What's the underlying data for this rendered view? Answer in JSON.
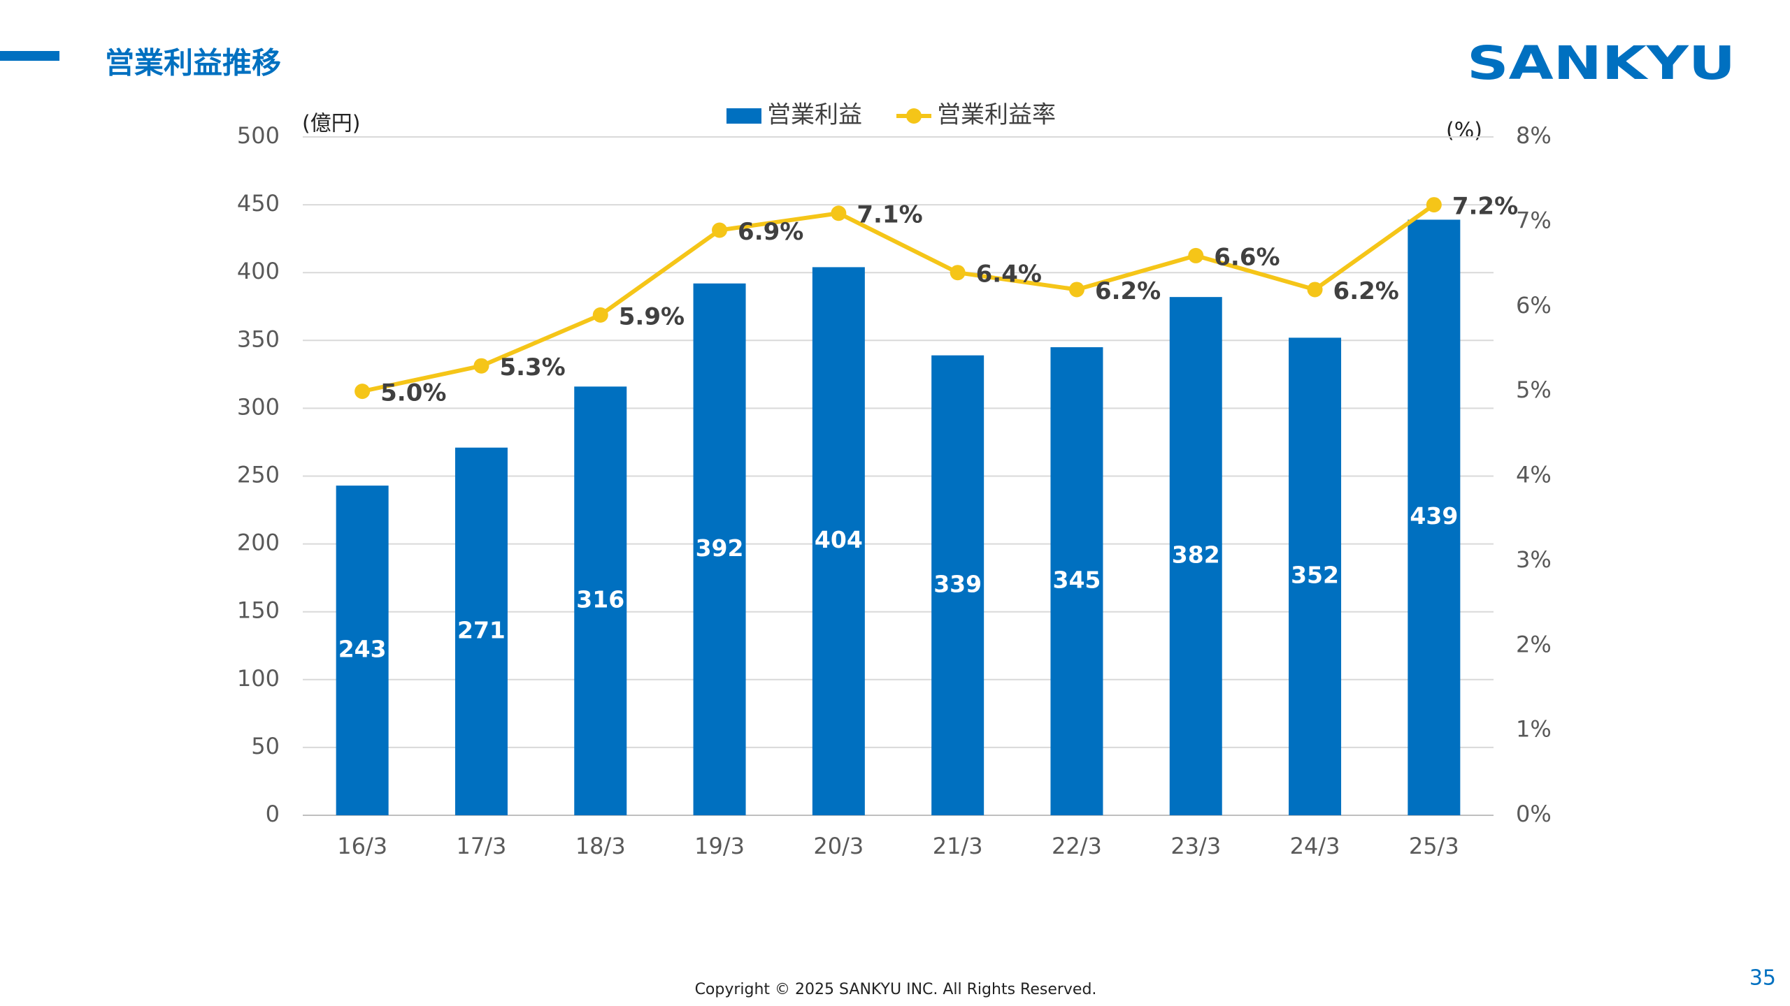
{
  "header": {
    "title": "営業利益推移",
    "logo": "SANKYU"
  },
  "chart_data": {
    "type": "bar",
    "y_label": "(億円)",
    "y2_label": "(%)",
    "categories": [
      "16/3",
      "17/3",
      "18/3",
      "19/3",
      "20/3",
      "21/3",
      "22/3",
      "23/3",
      "24/3",
      "25/3"
    ],
    "series": [
      {
        "name": "営業利益",
        "type": "bar",
        "color": "#0070C0",
        "values": [
          243,
          271,
          316,
          392,
          404,
          339,
          345,
          382,
          352,
          439
        ]
      },
      {
        "name": "営業利益率",
        "type": "line",
        "axis": "y2",
        "color": "#F5C518",
        "values": [
          5.0,
          5.3,
          5.9,
          6.9,
          7.1,
          6.4,
          6.2,
          6.6,
          6.2,
          7.2
        ],
        "value_labels": [
          "5.0%",
          "5.3%",
          "5.9%",
          "6.9%",
          "7.1%",
          "6.4%",
          "6.2%",
          "6.6%",
          "6.2%",
          "7.2%"
        ]
      }
    ],
    "ylim": [
      0,
      500
    ],
    "yticks": [
      0,
      50,
      100,
      150,
      200,
      250,
      300,
      350,
      400,
      450,
      500
    ],
    "y2lim": [
      0,
      8
    ],
    "y2ticks": [
      {
        "value": 0,
        "label": "0%"
      },
      {
        "value": 1,
        "label": "1%"
      },
      {
        "value": 2,
        "label": "2%"
      },
      {
        "value": 3,
        "label": "3%"
      },
      {
        "value": 4,
        "label": "4%"
      },
      {
        "value": 5,
        "label": "5%"
      },
      {
        "value": 6,
        "label": "6%"
      },
      {
        "value": 7,
        "label": "7%"
      },
      {
        "value": 8,
        "label": "8%"
      }
    ],
    "grid": true,
    "legend": "top"
  },
  "footer": {
    "copyright": "Copyright © 2025 SANKYU INC. All Rights Reserved.",
    "page_number": "35"
  }
}
